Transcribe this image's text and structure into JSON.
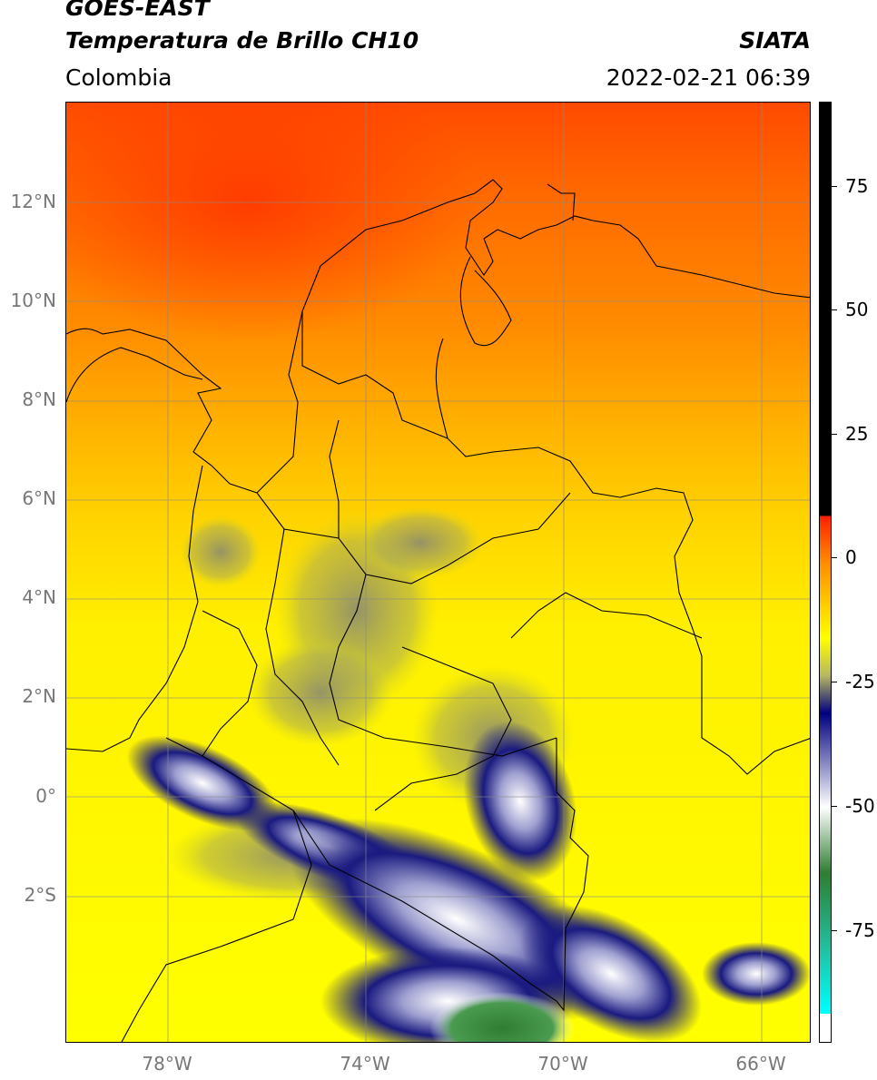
{
  "header": {
    "title_line1": "GOES-EAST",
    "title_line2": "Temperatura de Brillo CH10",
    "region": "Colombia",
    "brand": "SIATA",
    "datetime": "2022-02-21 06:39"
  },
  "axes": {
    "lat_labels": [
      "12°N",
      "10°N",
      "8°N",
      "6°N",
      "4°N",
      "2°N",
      "0°",
      "2°S"
    ],
    "lon_labels": [
      "78°W",
      "74°W",
      "70°W",
      "66°W"
    ]
  },
  "colorbar": {
    "ticks": [
      "75",
      "50",
      "25",
      "0",
      "-25",
      "-50",
      "-75"
    ],
    "colors": [
      "#000000",
      "#ff2000",
      "#ff8c00",
      "#ffff00",
      "#b8b860",
      "#000080",
      "#ffffff",
      "#2e7d32",
      "#20c0a0",
      "#00ffff"
    ]
  },
  "chart_data": {
    "type": "heatmap",
    "title": "Temperatura de Brillo CH10",
    "variable_range": [
      -95,
      90
    ],
    "colorbar_ticks": [
      75,
      50,
      25,
      0,
      -25,
      -50,
      -75
    ],
    "lat_range": [
      -5,
      14
    ],
    "lon_range": [
      -80,
      -65
    ]
  }
}
